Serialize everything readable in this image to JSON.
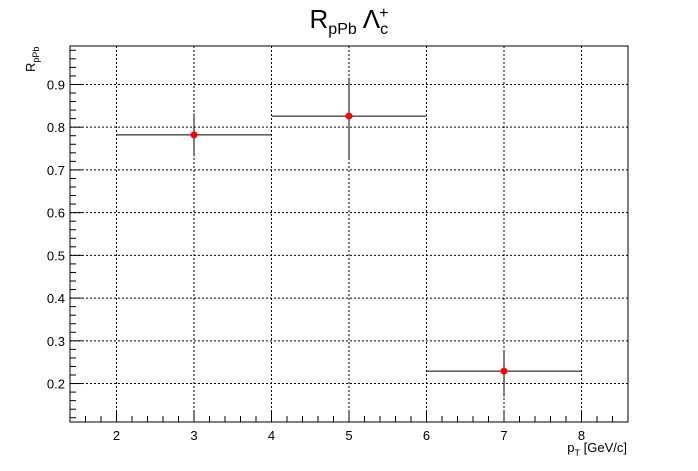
{
  "chart_data": {
    "type": "scatter",
    "title": {
      "main": "R",
      "main_sub": "pPb",
      "particle": "Λ",
      "particle_sub": "c",
      "particle_sup": "+"
    },
    "xlabel": {
      "main": "p",
      "sub": "T",
      "rest": " [GeV/c]"
    },
    "ylabel": {
      "main": "R",
      "sub": "pPb"
    },
    "xlim": [
      1.4,
      8.6
    ],
    "ylim": [
      0.11,
      0.99
    ],
    "x_ticks": [
      2,
      3,
      4,
      5,
      6,
      7,
      8
    ],
    "y_ticks": [
      0.2,
      0.3,
      0.4,
      0.5,
      0.6,
      0.7,
      0.8,
      0.9
    ],
    "grid": true,
    "marker_color": "#ff0000",
    "points": [
      {
        "x": 3,
        "y": 0.782,
        "x_err": 1,
        "y_err_low": 0.05,
        "y_err_high": 0.05
      },
      {
        "x": 5,
        "y": 0.826,
        "x_err": 1,
        "y_err_low": 0.1,
        "y_err_high": 0.09
      },
      {
        "x": 7,
        "y": 0.229,
        "x_err": 1,
        "y_err_low": 0.06,
        "y_err_high": 0.05
      }
    ]
  }
}
